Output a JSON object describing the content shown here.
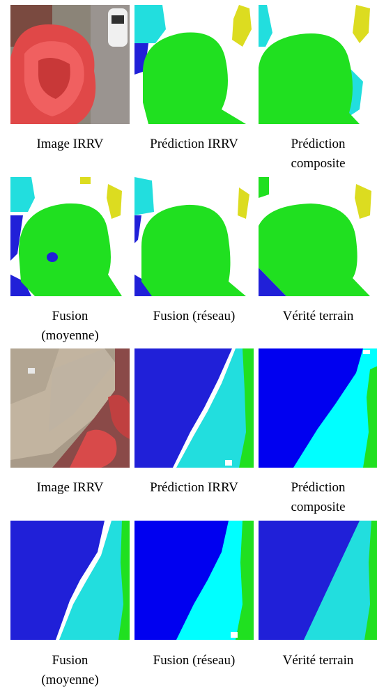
{
  "figure": {
    "blocks": [
      {
        "rows": [
          {
            "captions": [
              {
                "lines": [
                  "Image IRRV"
                ]
              },
              {
                "lines": [
                  "Prédiction IRRV"
                ]
              },
              {
                "lines": [
                  "Prédiction",
                  "composite"
                ]
              }
            ]
          },
          {
            "captions": [
              {
                "lines": [
                  "Fusion",
                  "(moyenne)"
                ]
              },
              {
                "lines": [
                  "Fusion (réseau)"
                ]
              },
              {
                "lines": [
                  "Vérité terrain"
                ]
              }
            ]
          }
        ]
      },
      {
        "rows": [
          {
            "captions": [
              {
                "lines": [
                  "Image IRRV"
                ]
              },
              {
                "lines": [
                  "Prédiction IRRV"
                ]
              },
              {
                "lines": [
                  "Prédiction",
                  "composite"
                ]
              }
            ]
          },
          {
            "captions": [
              {
                "lines": [
                  "Fusion",
                  "(moyenne)"
                ]
              },
              {
                "lines": [
                  "Fusion (réseau)"
                ]
              },
              {
                "lines": [
                  "Vérité terrain"
                ]
              }
            ]
          }
        ]
      }
    ]
  },
  "palette": {
    "tree": "#20e020",
    "building": "#2020d8",
    "building_dark": "#0000f0",
    "low_vegetation": "#22dede",
    "low_vegetation_bright": "#00ffff",
    "car": "#dcdc20",
    "road": "#ffffff"
  }
}
